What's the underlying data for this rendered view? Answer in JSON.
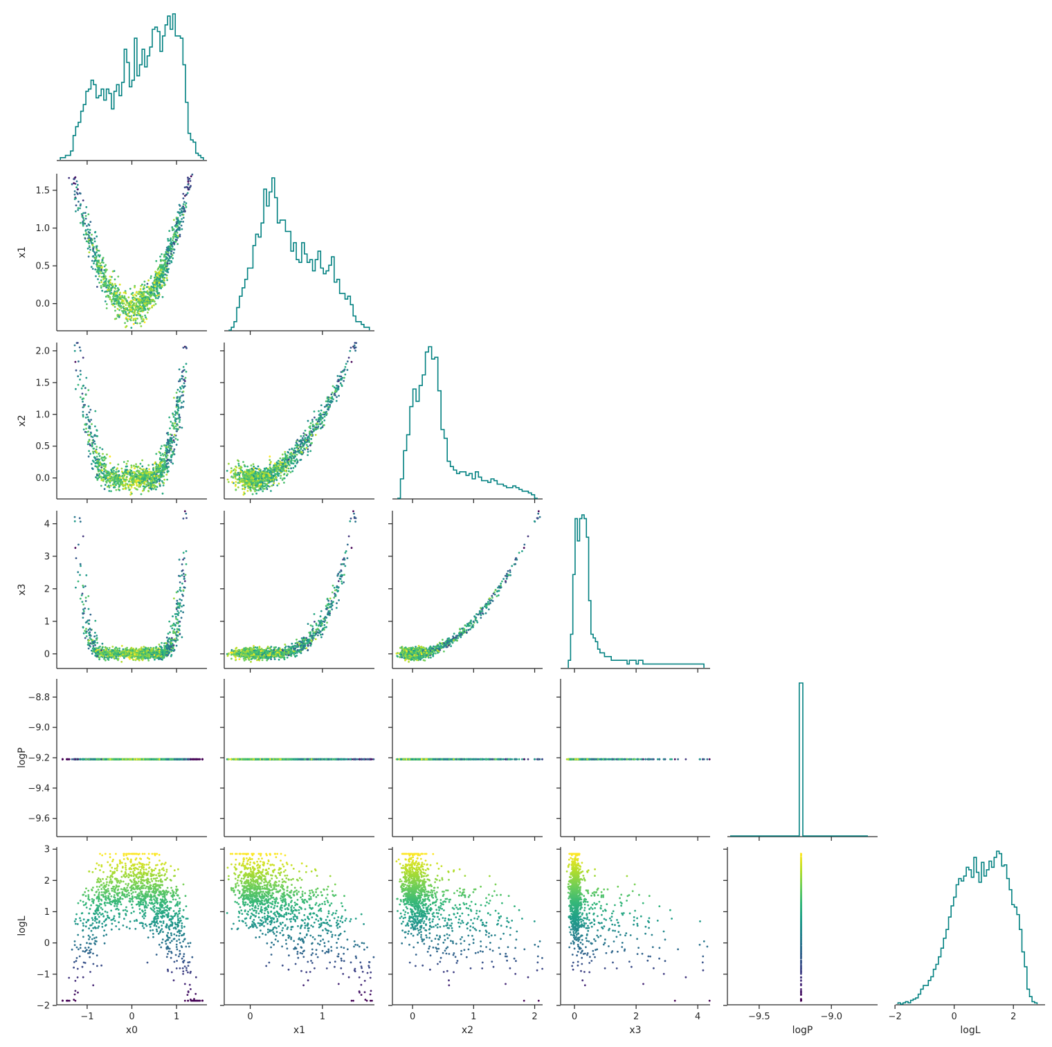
{
  "chart_data": {
    "type": "scatter",
    "layout": "corner-pairplot",
    "variables": [
      "x0",
      "x1",
      "x2",
      "x3",
      "logP",
      "logL"
    ],
    "colors": {
      "hist": "#008080",
      "axis": "#262626",
      "colormap": "viridis",
      "color_by": "logL"
    },
    "ranges": {
      "x0": [
        -1.68,
        1.68
      ],
      "x1": [
        -0.36,
        1.72
      ],
      "x2": [
        -0.33,
        2.13
      ],
      "x3": [
        -0.45,
        4.4
      ],
      "logP": [
        -9.72,
        -8.68
      ],
      "logL": [
        -1.98,
        3.07
      ]
    },
    "ticks": {
      "x0": [
        -1,
        0,
        1
      ],
      "x1": [
        0,
        1
      ],
      "x2": [
        0,
        1,
        2
      ],
      "x3": [
        0,
        2,
        4
      ],
      "logP": [
        -9.5,
        -9.0
      ],
      "logL": [
        -2,
        0,
        2
      ]
    },
    "tick_labels": {
      "x0": [
        "−1",
        "0",
        "1"
      ],
      "x1": [
        "0",
        "1"
      ],
      "x2": [
        "0",
        "1",
        "2"
      ],
      "x3": [
        "0",
        "2",
        "4"
      ],
      "logP": [
        "−9.5",
        "−9.0"
      ],
      "logL": [
        "−2",
        "0",
        "2"
      ]
    },
    "ytick_values": {
      "x1": [
        0.0,
        0.5,
        1.0,
        1.5
      ],
      "x2": [
        0.0,
        0.5,
        1.0,
        1.5,
        2.0
      ],
      "x3": [
        0,
        1,
        2,
        3,
        4
      ],
      "logP": [
        -9.6,
        -9.4,
        -9.2,
        -9.0,
        -8.8
      ],
      "logL": [
        -2,
        -1,
        0,
        1,
        2,
        3
      ]
    },
    "ytick_labels": {
      "x1": [
        "0.0",
        "0.5",
        "1.0",
        "1.5"
      ],
      "x2": [
        "0.0",
        "0.5",
        "1.0",
        "1.5",
        "2.0"
      ],
      "x3": [
        "0",
        "1",
        "2",
        "3",
        "4"
      ],
      "logP": [
        "−9.6",
        "−9.4",
        "−9.2",
        "−9.0",
        "−8.8"
      ],
      "logL": [
        "−2",
        "−1",
        "0",
        "1",
        "2",
        "3"
      ]
    },
    "histograms": {
      "x0": {
        "range": [
          -1.6,
          1.6
        ],
        "heights": [
          1,
          1,
          2,
          2,
          4,
          11,
          15,
          17,
          22,
          25,
          31,
          32,
          36,
          34,
          28,
          29,
          32,
          27,
          32,
          30,
          23,
          31,
          34,
          29,
          35,
          50,
          44,
          33,
          36,
          55,
          38,
          43,
          50,
          42,
          47,
          51,
          59,
          60,
          58,
          49,
          56,
          61,
          65,
          59,
          66,
          56,
          56,
          55,
          43,
          26,
          12,
          9,
          8,
          3,
          2,
          1
        ]
      },
      "x1": {
        "range": [
          -0.3,
          1.65
        ],
        "heights": [
          0,
          1,
          3,
          8,
          12,
          15,
          18,
          22,
          22,
          30,
          34,
          33,
          38,
          50,
          44,
          49,
          54,
          47,
          38,
          39,
          39,
          35,
          35,
          28,
          31,
          25,
          24,
          31,
          27,
          24,
          25,
          21,
          25,
          28,
          22,
          20,
          21,
          23,
          26,
          17,
          18,
          13,
          13,
          11,
          12,
          9,
          5,
          3,
          3,
          2,
          1,
          1
        ]
      },
      "x2": {
        "range": [
          -0.25,
          2.05
        ],
        "heights": [
          0,
          11,
          27,
          36,
          52,
          62,
          55,
          64,
          70,
          83,
          86,
          79,
          80,
          61,
          39,
          34,
          21,
          18,
          16,
          14,
          15,
          15,
          13,
          14,
          11,
          15,
          12,
          10,
          10,
          9,
          11,
          10,
          8,
          8,
          7,
          6,
          6,
          7,
          6,
          5,
          4,
          4,
          3,
          2,
          0
        ]
      },
      "x3": {
        "range": [
          -0.2,
          4.2
        ],
        "heights": [
          2,
          9,
          25,
          40,
          34,
          40,
          41,
          40,
          35,
          18,
          9,
          8,
          7,
          5,
          4,
          4,
          3,
          3,
          3,
          2,
          2,
          2,
          2,
          2,
          2,
          2,
          1,
          2,
          2,
          2,
          1,
          2,
          2,
          1,
          1,
          1,
          1,
          1,
          1,
          1,
          1,
          1,
          1,
          1,
          1,
          1,
          1,
          1,
          1,
          1,
          1,
          1,
          1,
          1,
          1,
          1,
          1,
          1,
          1,
          1
        ]
      },
      "logP": {
        "range": [
          -9.22,
          -9.2
        ],
        "heights": [
          100
        ]
      },
      "logL": {
        "range": [
          -1.9,
          2.8
        ],
        "heights": [
          1,
          0,
          1,
          2,
          1,
          3,
          4,
          5,
          8,
          12,
          15,
          15,
          19,
          22,
          28,
          32,
          38,
          45,
          53,
          60,
          70,
          79,
          86,
          96,
          101,
          99,
          103,
          110,
          108,
          102,
          118,
          106,
          98,
          114,
          103,
          108,
          115,
          110,
          118,
          123,
          121,
          111,
          112,
          101,
          92,
          80,
          78,
          72,
          60,
          42,
          30,
          12,
          6,
          2,
          1
        ]
      }
    },
    "scatter": [
      {
        "x": "x0",
        "y": "x1",
        "relation": "x1 ≈ x0² with spread",
        "n_points": 1300
      },
      {
        "x": "x0",
        "y": "x2",
        "relation": "x2 ≈ x1²",
        "n_points": 1300
      },
      {
        "x": "x1",
        "y": "x2",
        "relation": "x2 ≈ x1²",
        "n_points": 1300
      },
      {
        "x": "x0",
        "y": "x3",
        "relation": "x3 ≈ x2²",
        "n_points": 1300
      },
      {
        "x": "x1",
        "y": "x3",
        "relation": "x3 ≈ x2²",
        "n_points": 1300
      },
      {
        "x": "x2",
        "y": "x3",
        "relation": "x3 ≈ x2²",
        "n_points": 1300
      },
      {
        "x": "x0",
        "y": "logP",
        "relation": "logP constant ≈ -9.21",
        "n_points": 1300
      },
      {
        "x": "x1",
        "y": "logP",
        "relation": "logP constant ≈ -9.21",
        "n_points": 1300
      },
      {
        "x": "x2",
        "y": "logP",
        "relation": "logP constant ≈ -9.21",
        "n_points": 1300
      },
      {
        "x": "x3",
        "y": "logP",
        "relation": "logP constant ≈ -9.21",
        "n_points": 1300
      },
      {
        "x": "x0",
        "y": "logL",
        "relation": "logL peaks near x0≈0",
        "n_points": 1300
      },
      {
        "x": "x1",
        "y": "logL",
        "relation": "logL highest near x1≈0",
        "n_points": 1300
      },
      {
        "x": "x2",
        "y": "logL",
        "relation": "logL highest near x2≈0",
        "n_points": 1300
      },
      {
        "x": "x3",
        "y": "logL",
        "relation": "logL highest near x3≈0",
        "n_points": 1300
      },
      {
        "x": "logP",
        "y": "logL",
        "relation": "single column at logP ≈ -9.21",
        "n_points": 1300
      }
    ],
    "logP_value": -9.21,
    "grid": false,
    "title": "",
    "xlabels": [
      "x0",
      "x1",
      "x2",
      "x3",
      "logP",
      "logL"
    ],
    "ylabels": [
      "x1",
      "x2",
      "x3",
      "logP",
      "logL"
    ]
  }
}
